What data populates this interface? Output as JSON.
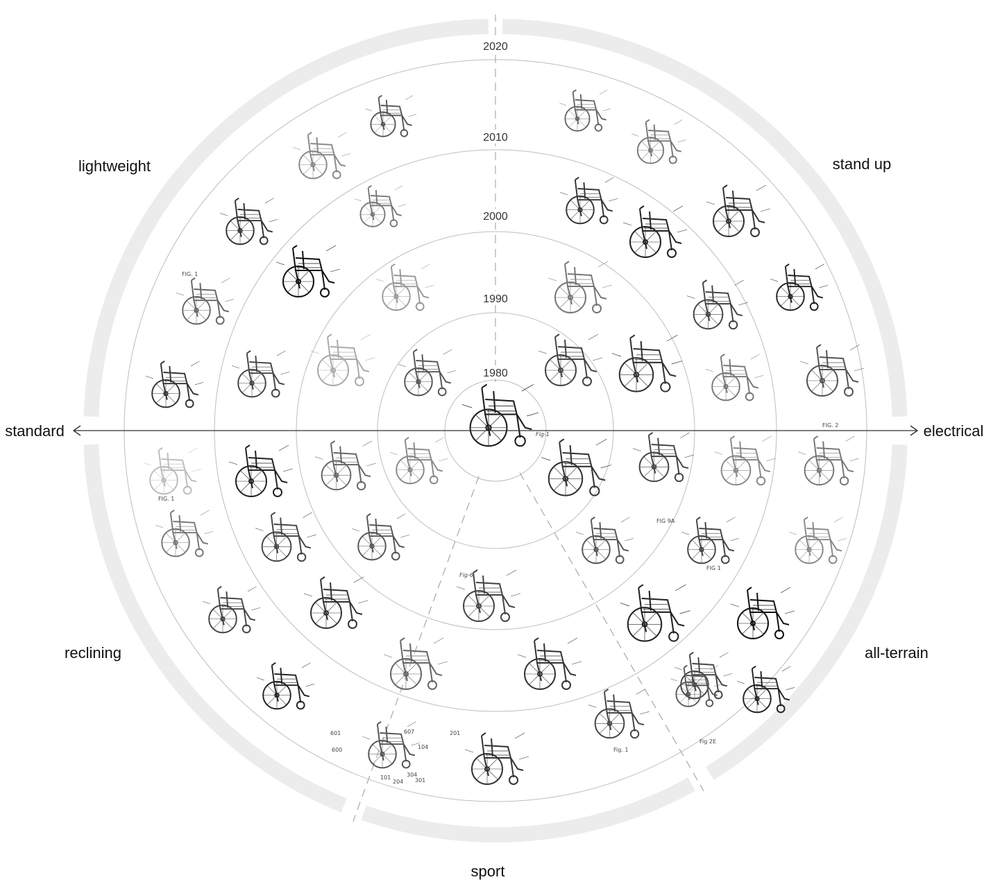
{
  "categories": {
    "lightweight": "lightweight",
    "stand_up": "stand up",
    "standard": "standard",
    "electrical": "electrical",
    "reclining": "reclining",
    "all_terrain": "all-terrain",
    "sport": "sport"
  },
  "years": [
    "1980",
    "1990",
    "2000",
    "2010",
    "2020"
  ],
  "figure_labels": {
    "center": "Fig-1",
    "electrical_right": "FIG. 2",
    "all_terrain_bottom": "Fig 2E",
    "all_terrain_mid": "FIG 1",
    "electrical_lower": "FIG 9A",
    "standard_left": "FIG. 1",
    "reclining_top": "FIG. 1",
    "sport_mid": "Fig-6",
    "bottom_right": "Fig. 1"
  },
  "sport_numbers": [
    "601",
    "607",
    "104",
    "201",
    "101",
    "204",
    "304",
    "301",
    "600"
  ],
  "colors": {
    "outer_band": "#ececec",
    "ring_line": "#bdbdbd",
    "axis": "#333333",
    "drawing": "#2b2b2b"
  },
  "icons": [
    "left-arrow-icon",
    "right-arrow-icon"
  ]
}
